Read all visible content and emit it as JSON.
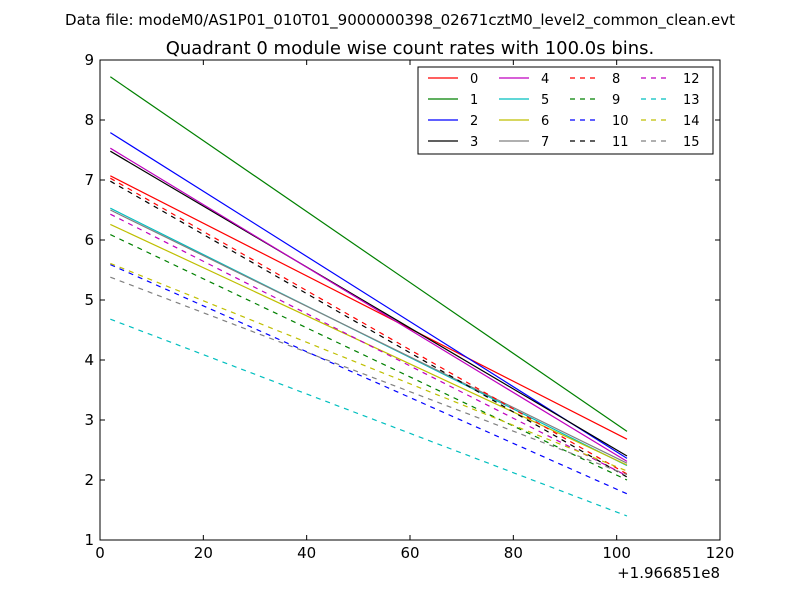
{
  "chart_data": {
    "type": "line",
    "suptitle": "Data file: modeM0/AS1P01_010T01_9000000398_02671cztM0_level2_common_clean.evt",
    "title": "Quadrant 0 module wise count rates with 100.0s bins.",
    "xlabel": "",
    "ylabel": "",
    "x_offset_label": "+1.966851e8",
    "xlim": [
      0,
      120
    ],
    "ylim": [
      1,
      9
    ],
    "xticks": [
      0,
      20,
      40,
      60,
      80,
      100,
      120
    ],
    "yticks": [
      1,
      2,
      3,
      4,
      5,
      6,
      7,
      8,
      9
    ],
    "x": [
      2,
      102
    ],
    "legend_position": "top-right",
    "legend_columns": 4,
    "series": [
      {
        "name": "0",
        "color": "#ff0000",
        "dash": "solid",
        "values": [
          7.07,
          2.68
        ]
      },
      {
        "name": "1",
        "color": "#008000",
        "dash": "solid",
        "values": [
          8.72,
          2.81
        ]
      },
      {
        "name": "2",
        "color": "#0000ff",
        "dash": "solid",
        "values": [
          7.79,
          2.36
        ]
      },
      {
        "name": "3",
        "color": "#000000",
        "dash": "solid",
        "values": [
          7.48,
          2.4
        ]
      },
      {
        "name": "4",
        "color": "#bf00bf",
        "dash": "solid",
        "values": [
          7.53,
          2.31
        ]
      },
      {
        "name": "5",
        "color": "#00bfbf",
        "dash": "solid",
        "values": [
          6.53,
          2.24
        ]
      },
      {
        "name": "6",
        "color": "#bfbf00",
        "dash": "solid",
        "values": [
          6.26,
          2.25
        ]
      },
      {
        "name": "7",
        "color": "#808080",
        "dash": "solid",
        "values": [
          6.5,
          2.28
        ]
      },
      {
        "name": "8",
        "color": "#ff0000",
        "dash": "dashed",
        "values": [
          7.03,
          2.1
        ]
      },
      {
        "name": "9",
        "color": "#008000",
        "dash": "dashed",
        "values": [
          6.09,
          2.0
        ]
      },
      {
        "name": "10",
        "color": "#0000ff",
        "dash": "dashed",
        "values": [
          5.59,
          1.77
        ]
      },
      {
        "name": "11",
        "color": "#000000",
        "dash": "dashed",
        "values": [
          6.98,
          2.05
        ]
      },
      {
        "name": "12",
        "color": "#bf00bf",
        "dash": "dashed",
        "values": [
          6.43,
          2.07
        ]
      },
      {
        "name": "13",
        "color": "#00bfbf",
        "dash": "dashed",
        "values": [
          4.68,
          1.4
        ]
      },
      {
        "name": "14",
        "color": "#bfbf00",
        "dash": "dashed",
        "values": [
          5.61,
          2.15
        ]
      },
      {
        "name": "15",
        "color": "#808080",
        "dash": "dashed",
        "values": [
          5.38,
          2.09
        ]
      }
    ]
  }
}
